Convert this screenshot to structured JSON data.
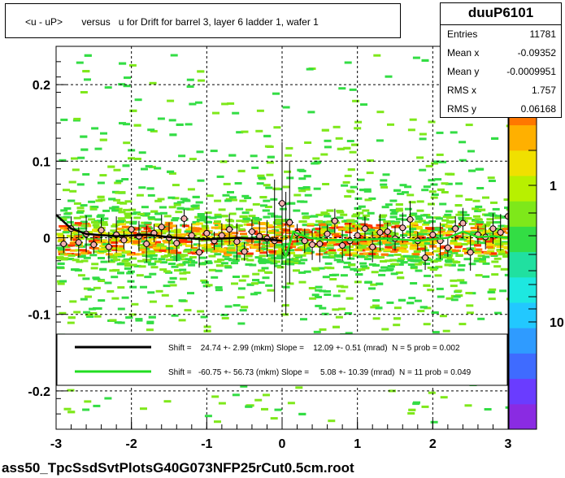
{
  "title": "<u - uP>       versus   u for Drift for barrel 3, layer 6 ladder 1, wafer 1",
  "stats": {
    "name": "duuP6101",
    "rows": [
      {
        "label": "Entries",
        "value": "11781"
      },
      {
        "label": "Mean x",
        "value": "-0.09352"
      },
      {
        "label": "Mean y",
        "value": "-0.0009951"
      },
      {
        "label": "RMS x",
        "value": "1.757"
      },
      {
        "label": "RMS y",
        "value": "0.06168"
      }
    ]
  },
  "footer": "ass50_TpcSsdSvtPlotsG40G073NFP25rCut0.5cm.root",
  "legend": {
    "fits": [
      {
        "color": "#000000",
        "text": "Shift =    24.74 +- 2.99 (mkm) Slope =    12.09 +- 0.51 (mrad)  N = 5 prob = 0.002"
      },
      {
        "color": "#22dd22",
        "text": "Shift =   -60.75 +- 56.73 (mkm) Slope =     5.08 +- 10.39 (mrad)  N = 11 prob = 0.049"
      }
    ]
  },
  "colors": {
    "palette": [
      "#8a2be2",
      "#6a3cff",
      "#3f6bff",
      "#2f9bff",
      "#22c8ff",
      "#1de8e0",
      "#20e0a0",
      "#33dd44",
      "#7ee81a",
      "#b8f000",
      "#f0e000",
      "#ffb000",
      "#ff7700",
      "#ff3300",
      "#e00000"
    ]
  },
  "chart_data": {
    "type": "scatter",
    "title": "<u - uP>       versus   u for Drift for barrel 3, layer 6 ladder 1, wafer 1",
    "xlabel": "",
    "ylabel": "",
    "xlim": [
      -3,
      3
    ],
    "ylim": [
      -0.25,
      0.25
    ],
    "x_ticks": [
      "-3",
      "-2",
      "-1",
      "0",
      "1",
      "2",
      "3"
    ],
    "y_ticks": [
      "-0.2",
      "-0.1",
      "0",
      "0.1",
      "0.2"
    ],
    "color_scale_ticks": [
      "1",
      "10"
    ],
    "color_scale_partial_label": "0",
    "grid": true,
    "profile_points": [
      {
        "x": -2.9,
        "y": -0.008
      },
      {
        "x": -2.8,
        "y": 0.012
      },
      {
        "x": -2.7,
        "y": -0.006
      },
      {
        "x": -2.6,
        "y": 0.005
      },
      {
        "x": -2.5,
        "y": -0.009
      },
      {
        "x": -2.4,
        "y": 0.01
      },
      {
        "x": -2.3,
        "y": -0.012
      },
      {
        "x": -2.2,
        "y": 0.004
      },
      {
        "x": -2.1,
        "y": -0.003
      },
      {
        "x": -2.0,
        "y": 0.011
      },
      {
        "x": -1.9,
        "y": 0.002
      },
      {
        "x": -1.8,
        "y": -0.008
      },
      {
        "x": -1.7,
        "y": 0.006
      },
      {
        "x": -1.6,
        "y": 0.014
      },
      {
        "x": -1.5,
        "y": 0.0
      },
      {
        "x": -1.4,
        "y": -0.007
      },
      {
        "x": -1.3,
        "y": 0.025
      },
      {
        "x": -1.2,
        "y": 0.003
      },
      {
        "x": -1.1,
        "y": -0.019
      },
      {
        "x": -1.0,
        "y": 0.006
      },
      {
        "x": -0.9,
        "y": -0.004
      },
      {
        "x": -0.8,
        "y": 0.003
      },
      {
        "x": -0.7,
        "y": 0.011
      },
      {
        "x": -0.6,
        "y": -0.005
      },
      {
        "x": -0.5,
        "y": -0.018
      },
      {
        "x": -0.4,
        "y": 0.008
      },
      {
        "x": -0.3,
        "y": 0.002
      },
      {
        "x": -0.2,
        "y": -0.001
      },
      {
        "x": -0.1,
        "y": -0.004
      },
      {
        "x": 0.0,
        "y": 0.045
      },
      {
        "x": 0.05,
        "y": -0.02
      },
      {
        "x": 0.1,
        "y": 0.02
      },
      {
        "x": 0.2,
        "y": 0.006
      },
      {
        "x": 0.3,
        "y": -0.004
      },
      {
        "x": 0.4,
        "y": -0.009
      },
      {
        "x": 0.5,
        "y": -0.008
      },
      {
        "x": 0.6,
        "y": 0.005
      },
      {
        "x": 0.7,
        "y": 0.022
      },
      {
        "x": 0.8,
        "y": -0.01
      },
      {
        "x": 0.9,
        "y": -0.004
      },
      {
        "x": 1.0,
        "y": 0.003
      },
      {
        "x": 1.1,
        "y": 0.012
      },
      {
        "x": 1.2,
        "y": -0.012
      },
      {
        "x": 1.3,
        "y": 0.007
      },
      {
        "x": 1.4,
        "y": 0.008
      },
      {
        "x": 1.5,
        "y": -0.001
      },
      {
        "x": 1.6,
        "y": 0.013
      },
      {
        "x": 1.7,
        "y": 0.024
      },
      {
        "x": 1.8,
        "y": -0.004
      },
      {
        "x": 1.9,
        "y": -0.026
      },
      {
        "x": 2.0,
        "y": 0.004
      },
      {
        "x": 2.1,
        "y": -0.004
      },
      {
        "x": 2.2,
        "y": -0.013
      },
      {
        "x": 2.3,
        "y": 0.012
      },
      {
        "x": 2.4,
        "y": 0.019
      },
      {
        "x": 2.5,
        "y": -0.019
      },
      {
        "x": 2.6,
        "y": 0.004
      },
      {
        "x": 2.7,
        "y": 0.001
      },
      {
        "x": 2.8,
        "y": 0.012
      },
      {
        "x": 2.9,
        "y": 0.007
      },
      {
        "x": 3.0,
        "y": 0.028
      }
    ],
    "fit_black": [
      {
        "x": -3.0,
        "y": 0.03
      },
      {
        "x": -2.8,
        "y": 0.012
      },
      {
        "x": -2.6,
        "y": 0.005
      },
      {
        "x": -2.2,
        "y": 0.002
      },
      {
        "x": -1.8,
        "y": 0.004
      },
      {
        "x": -1.4,
        "y": 0.0
      },
      {
        "x": -1.0,
        "y": -0.002
      },
      {
        "x": -0.6,
        "y": 0.0
      },
      {
        "x": -0.2,
        "y": -0.002
      },
      {
        "x": 0.0,
        "y": -0.004
      }
    ],
    "fit_green": [
      {
        "x": 0.0,
        "y": -0.01
      },
      {
        "x": 0.05,
        "y": -0.025
      },
      {
        "x": 0.15,
        "y": 0.008
      },
      {
        "x": 0.35,
        "y": 0.0
      },
      {
        "x": 0.6,
        "y": -0.003
      },
      {
        "x": 1.0,
        "y": -0.003
      },
      {
        "x": 1.4,
        "y": -0.001
      },
      {
        "x": 1.8,
        "y": -0.004
      },
      {
        "x": 2.2,
        "y": 0.0
      },
      {
        "x": 2.4,
        "y": 0.008
      },
      {
        "x": 2.6,
        "y": 0.001
      },
      {
        "x": 2.8,
        "y": 0.002
      },
      {
        "x": 3.0,
        "y": 0.0
      }
    ]
  }
}
